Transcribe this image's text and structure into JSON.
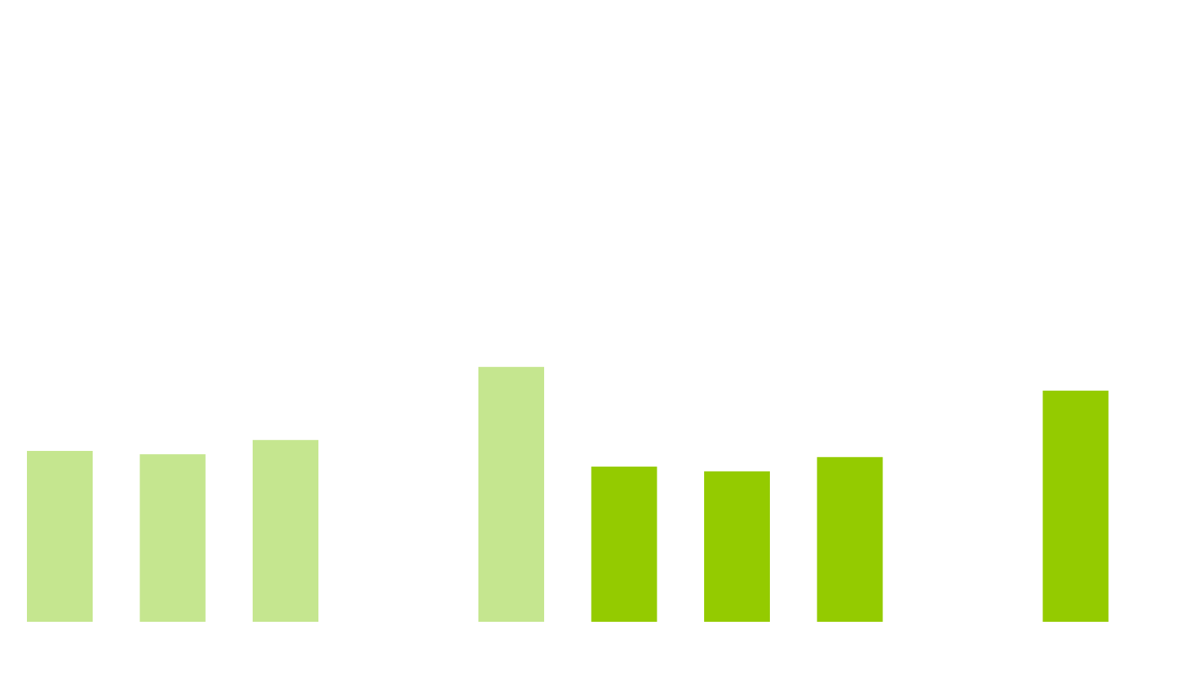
{
  "chart_data": {
    "type": "bar",
    "title": "",
    "xlabel": "",
    "ylabel": "",
    "grid": false,
    "legend": "none",
    "ylim": [
      0,
      100
    ],
    "categories": [
      "",
      "",
      "",
      "",
      "",
      "",
      "",
      "",
      "",
      ""
    ],
    "series": [
      {
        "color": "#c5e68f",
        "values": [
          36,
          35.3,
          38.3,
          null,
          53.7,
          null,
          null,
          null,
          null,
          null
        ]
      },
      {
        "color": "#94cb00",
        "values": [
          null,
          null,
          null,
          null,
          null,
          32.7,
          31.7,
          34.7,
          null,
          48.7
        ]
      }
    ]
  }
}
